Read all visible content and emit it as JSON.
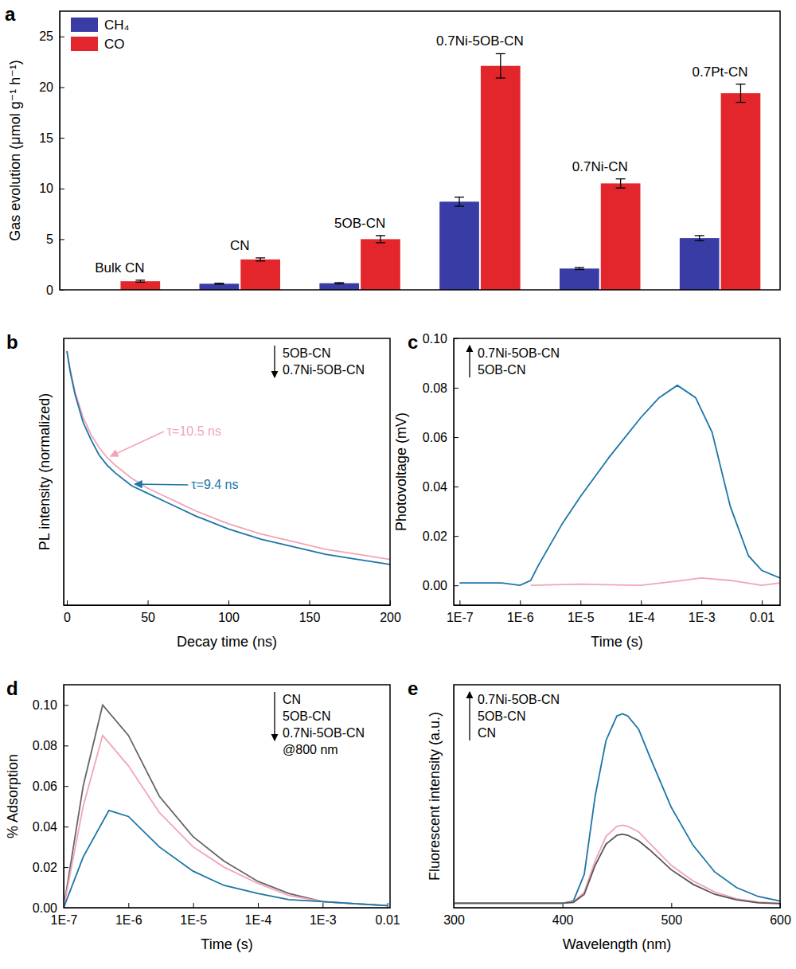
{
  "chart_data": [
    {
      "type": "bar",
      "title": "a",
      "categories": [
        "Bulk CN",
        "CN",
        "5OB-CN",
        "0.7Ni-5OB-CN",
        "0.7Ni-CN",
        "0.7Pt-CN"
      ],
      "series": [
        {
          "name": "CH₄",
          "color": "#3a3ca6",
          "values": [
            null,
            0.6,
            0.65,
            8.7,
            2.1,
            5.1
          ],
          "errors": [
            null,
            0.05,
            0.06,
            0.45,
            0.1,
            0.25
          ]
        },
        {
          "name": "CO",
          "color": "#e3262b",
          "values": [
            0.85,
            3.0,
            5.0,
            22.1,
            10.5,
            19.4
          ],
          "errors": [
            0.1,
            0.15,
            0.35,
            1.2,
            0.45,
            0.9
          ]
        }
      ],
      "y_label": "Gas evolution (μmol g⁻¹ h⁻¹)",
      "ylim": [
        0,
        27.5
      ],
      "yticks": [
        0,
        5,
        10,
        15,
        20,
        25
      ],
      "legend": "top-left",
      "tick_labels": "y"
    },
    {
      "type": "line",
      "title": "b",
      "x_label": "Decay time (ns)",
      "y_label": "PL intensity (normalized)",
      "xlim": [
        -2,
        200
      ],
      "xticks": [
        0,
        50,
        100,
        150,
        200
      ],
      "ylim": [
        0,
        1.05
      ],
      "tick_labels": "x",
      "legend": "top-right",
      "annotations": [
        "τ=10.5 ns",
        "τ=9.4 ns"
      ],
      "series": [
        {
          "name": "5OB-CN",
          "color": "#f2a5b5",
          "x": [
            0,
            2,
            5,
            10,
            15,
            20,
            25,
            30,
            40,
            50,
            60,
            70,
            80,
            100,
            120,
            140,
            160,
            180,
            200
          ],
          "values": [
            1.0,
            0.93,
            0.84,
            0.74,
            0.67,
            0.62,
            0.58,
            0.55,
            0.5,
            0.46,
            0.43,
            0.4,
            0.37,
            0.32,
            0.28,
            0.25,
            0.22,
            0.2,
            0.18
          ]
        },
        {
          "name": "0.7Ni-5OB-CN",
          "color": "#1b75a8",
          "x": [
            0,
            2,
            5,
            10,
            15,
            20,
            25,
            30,
            40,
            50,
            60,
            70,
            80,
            100,
            120,
            140,
            160,
            180,
            200
          ],
          "values": [
            1.0,
            0.92,
            0.83,
            0.72,
            0.65,
            0.59,
            0.55,
            0.52,
            0.47,
            0.44,
            0.41,
            0.38,
            0.35,
            0.3,
            0.26,
            0.23,
            0.2,
            0.18,
            0.16
          ]
        }
      ]
    },
    {
      "type": "line",
      "title": "c",
      "x_label": "Time (s)",
      "y_label": "Photovoltage (mV)",
      "log": "x",
      "xlim": [
        8e-08,
        0.02
      ],
      "xticks": [
        {
          "value": 1e-07,
          "label": "1E-7"
        },
        {
          "value": 1e-06,
          "label": "1E-6"
        },
        {
          "value": 1e-05,
          "label": "1E-5"
        },
        {
          "value": 0.0001,
          "label": "1E-4"
        },
        {
          "value": 0.001,
          "label": "1E-3"
        },
        0.01
      ],
      "ylim": [
        -0.008,
        0.1
      ],
      "yticks": [
        {
          "value": 0,
          "label": "0.00"
        },
        0.02,
        0.04,
        0.06,
        0.08,
        {
          "value": 0.1,
          "label": "0.10"
        }
      ],
      "legend": "top-left",
      "series": [
        {
          "name": "0.7Ni-5OB-CN",
          "color": "#1b75a8",
          "x": [
            1e-07,
            5e-07,
            1e-06,
            1.5e-06,
            2e-06,
            5e-06,
            1e-05,
            3e-05,
            0.0001,
            0.0002,
            0.0004,
            0.0008,
            0.0015,
            0.003,
            0.006,
            0.01,
            0.02
          ],
          "values": [
            0.001,
            0.001,
            0.0,
            0.002,
            0.008,
            0.025,
            0.036,
            0.052,
            0.068,
            0.076,
            0.081,
            0.076,
            0.062,
            0.032,
            0.012,
            0.006,
            0.003
          ]
        },
        {
          "name": "5OB-CN",
          "color": "#f2a5b5",
          "x": [
            1.5e-06,
            1e-05,
            0.0001,
            0.0005,
            0.001,
            0.003,
            0.01,
            0.02
          ],
          "values": [
            0.0,
            0.0005,
            0.0,
            0.002,
            0.003,
            0.002,
            0.0,
            0.001
          ]
        }
      ]
    },
    {
      "type": "line",
      "title": "d",
      "x_label": "Time (s)",
      "y_label": "% Adsorption",
      "log": "x",
      "xlim": [
        1e-07,
        0.011
      ],
      "xticks": [
        {
          "value": 1e-07,
          "label": "1E-7"
        },
        {
          "value": 1e-06,
          "label": "1E-6"
        },
        {
          "value": 1e-05,
          "label": "1E-5"
        },
        {
          "value": 0.0001,
          "label": "1E-4"
        },
        {
          "value": 0.001,
          "label": "1E-3"
        },
        0.01
      ],
      "ylim": [
        0,
        0.11
      ],
      "yticks": [
        {
          "value": 0,
          "label": "0.00"
        },
        0.02,
        0.04,
        0.06,
        0.08,
        {
          "value": 0.1,
          "label": "0.10"
        }
      ],
      "legend": "top-right",
      "annotations": [
        "@800 nm"
      ],
      "series": [
        {
          "name": "CN",
          "color": "#666666",
          "x": [
            1e-07,
            2e-07,
            4e-07,
            1e-06,
            3e-06,
            1e-05,
            3e-05,
            0.0001,
            0.0003,
            0.001,
            0.003,
            0.01
          ],
          "values": [
            0.0,
            0.06,
            0.1,
            0.085,
            0.055,
            0.035,
            0.023,
            0.013,
            0.007,
            0.003,
            0.002,
            0.001
          ]
        },
        {
          "name": "5OB-CN",
          "color": "#f2a5b5",
          "x": [
            1e-07,
            2e-07,
            4e-07,
            1e-06,
            3e-06,
            1e-05,
            3e-05,
            0.0001,
            0.0003,
            0.001,
            0.003,
            0.01
          ],
          "values": [
            0.0,
            0.05,
            0.085,
            0.07,
            0.047,
            0.03,
            0.02,
            0.012,
            0.006,
            0.003,
            0.002,
            0.001
          ]
        },
        {
          "name": "0.7Ni-5OB-CN",
          "color": "#1b75a8",
          "x": [
            1e-07,
            2e-07,
            5e-07,
            1e-06,
            3e-06,
            1e-05,
            3e-05,
            0.0001,
            0.0003,
            0.001,
            0.003,
            0.01
          ],
          "values": [
            0.0,
            0.025,
            0.048,
            0.045,
            0.03,
            0.018,
            0.011,
            0.007,
            0.004,
            0.003,
            0.002,
            0.001
          ]
        }
      ]
    },
    {
      "type": "line",
      "title": "e",
      "x_label": "Wavelength (nm)",
      "y_label": "Fluorescent intensity (a.u.)",
      "xlim": [
        300,
        600
      ],
      "xticks": [
        300,
        400,
        500,
        600
      ],
      "ylim": [
        0,
        1
      ],
      "tick_labels": "x",
      "legend": "top-left",
      "series": [
        {
          "name": "0.7Ni-5OB-CN",
          "color": "#1b75a8",
          "x": [
            300,
            350,
            400,
            410,
            420,
            430,
            440,
            450,
            455,
            460,
            470,
            480,
            500,
            520,
            540,
            560,
            580,
            600
          ],
          "values": [
            0.02,
            0.02,
            0.02,
            0.03,
            0.15,
            0.5,
            0.75,
            0.86,
            0.87,
            0.86,
            0.8,
            0.68,
            0.45,
            0.28,
            0.16,
            0.09,
            0.05,
            0.03
          ]
        },
        {
          "name": "5OB-CN",
          "color": "#f2a5b5",
          "x": [
            300,
            350,
            400,
            410,
            420,
            430,
            440,
            450,
            455,
            460,
            470,
            480,
            500,
            520,
            540,
            560,
            580,
            600
          ],
          "values": [
            0.02,
            0.02,
            0.02,
            0.025,
            0.07,
            0.21,
            0.32,
            0.365,
            0.37,
            0.365,
            0.34,
            0.29,
            0.19,
            0.12,
            0.07,
            0.04,
            0.025,
            0.02
          ]
        },
        {
          "name": "CN",
          "color": "#555555",
          "x": [
            300,
            350,
            400,
            410,
            420,
            430,
            440,
            450,
            455,
            460,
            470,
            480,
            500,
            520,
            540,
            560,
            580,
            600
          ],
          "values": [
            0.02,
            0.02,
            0.02,
            0.024,
            0.06,
            0.19,
            0.285,
            0.325,
            0.33,
            0.325,
            0.3,
            0.26,
            0.17,
            0.105,
            0.06,
            0.035,
            0.022,
            0.018
          ]
        }
      ]
    }
  ]
}
